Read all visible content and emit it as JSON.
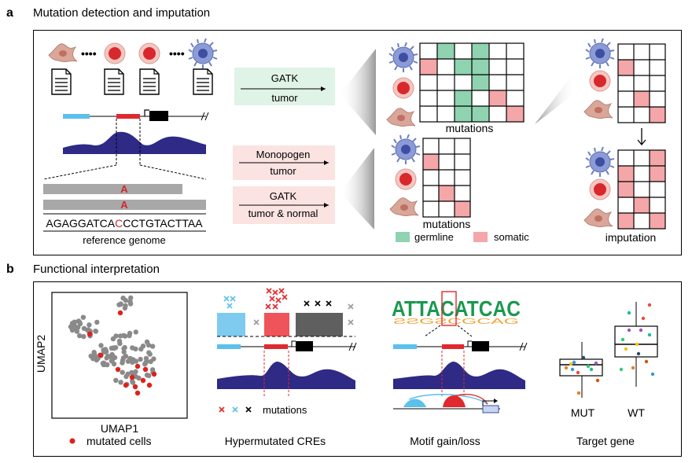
{
  "panel_a": {
    "letter": "a",
    "title": "Mutation detection and imputation",
    "gatk_tumor": {
      "tool": "GATK",
      "sample": "tumor"
    },
    "monopogen_tumor": {
      "tool": "Monopogen",
      "sample": "tumor"
    },
    "gatk_tumor_normal": {
      "tool": "GATK",
      "sample": "tumor & normal"
    },
    "read_allele_1": "A",
    "read_allele_2": "A",
    "sequence_prefix": "AGAGGATCA",
    "sequence_variant": "C",
    "sequence_suffix": "CCTGTACTTAA",
    "reference_label": "reference genome",
    "mutations_label_top": "mutations",
    "mutations_label_bottom": "mutations",
    "legend_germline": "germline",
    "legend_somatic": "somatic",
    "imputation_label": "imputation",
    "dots": "••••"
  },
  "panel_b": {
    "letter": "b",
    "title": "Functional interpretation",
    "umap_ylabel": "UMAP2",
    "umap_xlabel": "UMAP1",
    "umap_legend": "mutated cells",
    "cre_caption": "Hypermutated CREs",
    "cre_mutations_label": "mutations",
    "motif_sequence": "ATTACATCAC",
    "motif_caption": "Motif gain/loss",
    "target_caption": "Target gene",
    "box_labels": [
      "MUT",
      "WT"
    ]
  },
  "colors": {
    "germline": "#8fd3b0",
    "somatic": "#f4a6a8",
    "cre_red": "#e0282e",
    "cre_blue": "#5bc0eb",
    "coverage": "#2e2a86",
    "read_gray": "#a8a8a8",
    "mutated_dot": "#e0201c",
    "cell_dot": "#8a8a8a"
  }
}
